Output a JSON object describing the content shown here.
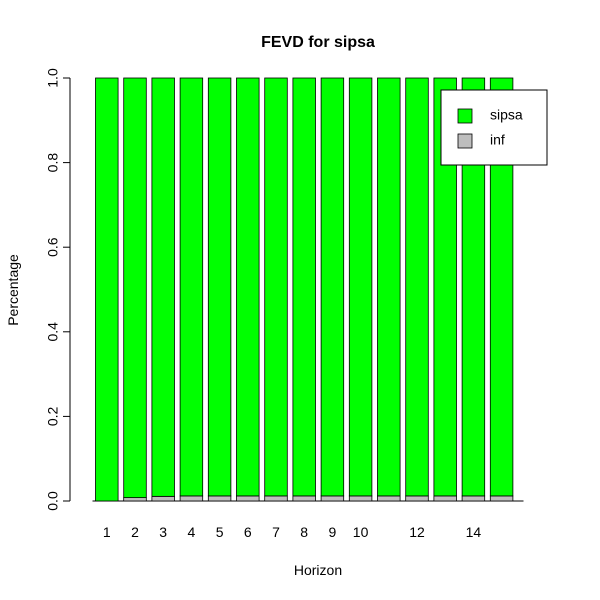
{
  "chart_data": {
    "type": "bar",
    "stacked": true,
    "title": "FEVD for sipsa",
    "xlabel": "Horizon",
    "ylabel": "Percentage",
    "ylim": [
      0,
      1
    ],
    "yticks": [
      "0.0",
      "0.2",
      "0.4",
      "0.6",
      "0.8",
      "1.0"
    ],
    "categories": [
      "1",
      "2",
      "3",
      "4",
      "5",
      "6",
      "7",
      "8",
      "9",
      "10",
      "11",
      "12",
      "13",
      "14",
      "15"
    ],
    "visible_xtick_labels": [
      "1",
      "2",
      "3",
      "4",
      "5",
      "6",
      "7",
      "8",
      "9",
      "10",
      "",
      "12",
      "",
      "14",
      ""
    ],
    "series": [
      {
        "name": "inf",
        "color": "#bebebe",
        "values": [
          0.0,
          0.008,
          0.011,
          0.012,
          0.012,
          0.012,
          0.012,
          0.012,
          0.012,
          0.012,
          0.012,
          0.012,
          0.012,
          0.012,
          0.012
        ]
      },
      {
        "name": "sipsa",
        "color": "#00ff00",
        "values": [
          1.0,
          0.992,
          0.989,
          0.988,
          0.988,
          0.988,
          0.988,
          0.988,
          0.988,
          0.988,
          0.988,
          0.988,
          0.988,
          0.988,
          0.988
        ]
      }
    ],
    "legend": {
      "position": "top-right",
      "entries": [
        {
          "label": "sipsa",
          "color": "#00ff00"
        },
        {
          "label": "inf",
          "color": "#bebebe"
        }
      ]
    },
    "grid": false
  }
}
